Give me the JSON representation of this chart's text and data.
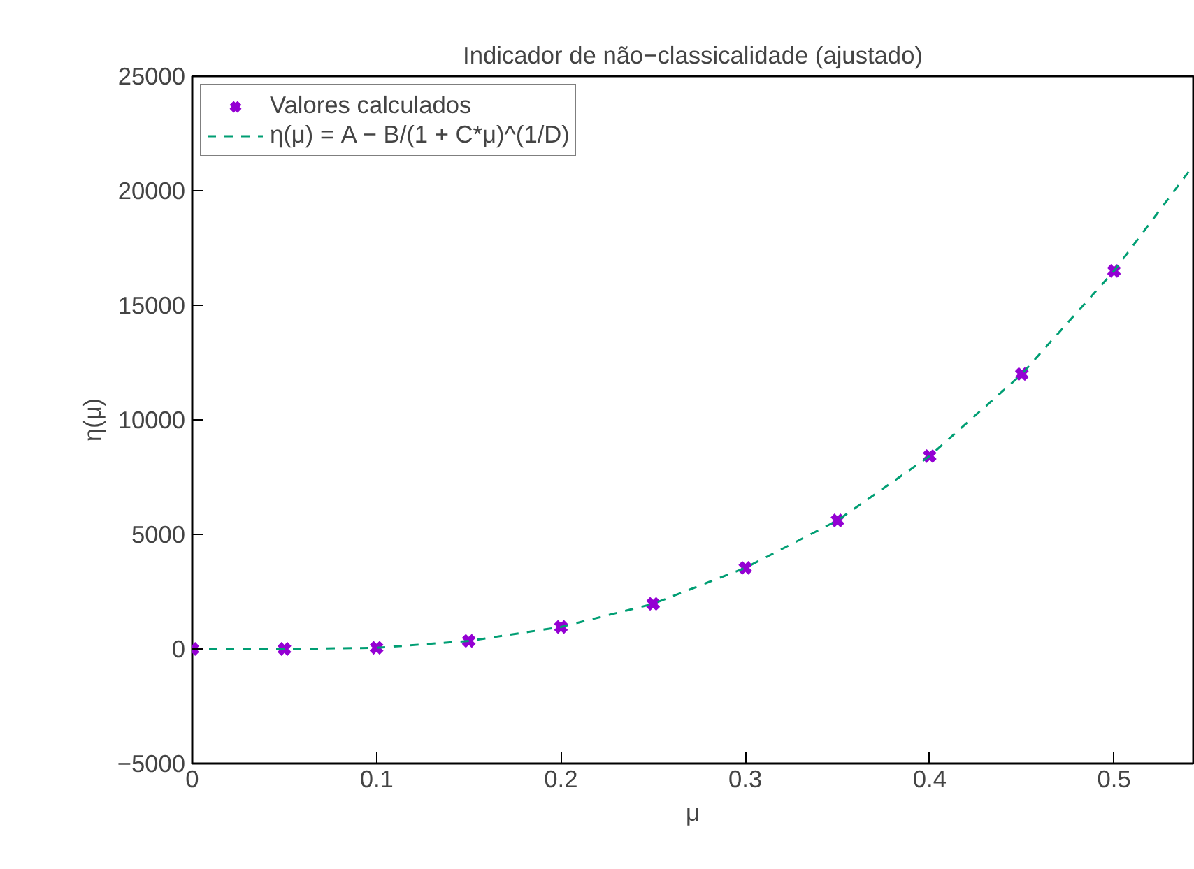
{
  "chart_data": {
    "type": "scatter",
    "title": "Indicador de não−classicalidade (ajustado)",
    "xlabel": "μ",
    "ylabel": "η(μ)",
    "xlim": [
      0,
      0.543
    ],
    "ylim": [
      -5000,
      25000
    ],
    "xticks": [
      0,
      0.1,
      0.2,
      0.3,
      0.4,
      0.5
    ],
    "yticks": [
      {
        "value": -5000,
        "label": "−5000"
      },
      0,
      5000,
      10000,
      15000,
      20000,
      25000
    ],
    "grid": false,
    "legend": "top left",
    "series": [
      {
        "name": "Valores calculados",
        "marker": "cross",
        "color": "#9400d3",
        "x": [
          0,
          0.05,
          0.1,
          0.15,
          0.2,
          0.25,
          0.3,
          0.35,
          0.4,
          0.45,
          0.5
        ],
        "values": [
          0,
          0,
          50,
          350,
          960,
          1970,
          3540,
          5610,
          8420,
          12000,
          16500
        ]
      },
      {
        "name": "η(μ) = A − B/(1 + C*μ)^(1/D)",
        "type": "line",
        "line_style": "dashed",
        "marker": "none",
        "color": "#009e73",
        "x": [
          0,
          0.05,
          0.1,
          0.15,
          0.2,
          0.25,
          0.3,
          0.35,
          0.4,
          0.45,
          0.5,
          0.543
        ],
        "values": [
          0,
          0,
          50,
          350,
          960,
          1970,
          3540,
          5610,
          8420,
          12000,
          16500,
          21100
        ]
      }
    ]
  }
}
